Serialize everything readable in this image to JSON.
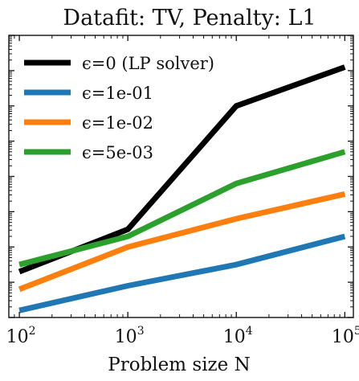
{
  "chart_data": {
    "type": "line",
    "title": "Datafit: TV, Penalty: L1",
    "xlabel": "Problem size N",
    "ylabel": "",
    "x_scale": "log",
    "y_scale": "log",
    "x": [
      100,
      1000,
      10000,
      100000
    ],
    "xlim": [
      80,
      120000
    ],
    "ylim_decades": [
      0,
      8
    ],
    "x_ticks": [
      {
        "base": "10",
        "exp": "2",
        "value": 100
      },
      {
        "base": "10",
        "exp": "3",
        "value": 1000
      },
      {
        "base": "10",
        "exp": "4",
        "value": 10000
      },
      {
        "base": "10",
        "exp": "5",
        "value": 100000
      }
    ],
    "series": [
      {
        "name": "ϵ=0 (LP solver)",
        "color": "#000000",
        "values": [
          1.3,
          2.5,
          6.0,
          7.1
        ]
      },
      {
        "name": "ϵ=1e-01",
        "color": "#1f77b4",
        "values": [
          0.2,
          0.9,
          1.5,
          2.3
        ]
      },
      {
        "name": "ϵ=1e-02",
        "color": "#ff7f0e",
        "values": [
          0.8,
          2.0,
          2.8,
          3.5
        ]
      },
      {
        "name": "ϵ=5e-03",
        "color": "#2ca02c",
        "values": [
          1.5,
          2.3,
          3.8,
          4.7
        ]
      }
    ],
    "grid": false,
    "legend": "top-left"
  }
}
